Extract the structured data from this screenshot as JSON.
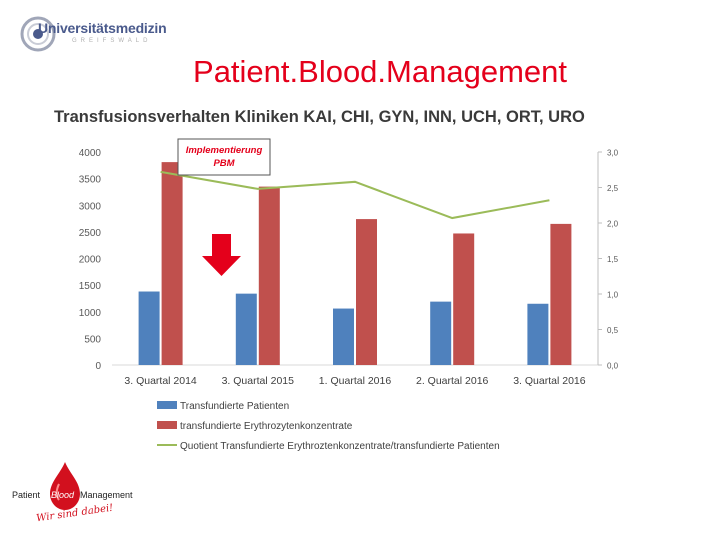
{
  "header": {
    "logo_text": "Universitätsmedizin",
    "logo_subtext": "GREIFSWALD",
    "title": "Patient.Blood.Management",
    "subtitle": "Transfusionsverhalten Kliniken KAI, CHI, GYN, INN, UCH, ORT, URO"
  },
  "annotation": {
    "line1": "Implementierung",
    "line2": "PBM"
  },
  "footer_logo": {
    "left": "Patient",
    "center": "Blood",
    "right": "Management",
    "slogan": "Wir sind dabei!"
  },
  "colors": {
    "blue": "#4f81bd",
    "red": "#c0504d",
    "green": "#9bbb59",
    "title_red": "#e4001b"
  },
  "chart_data": {
    "type": "bar",
    "categories": [
      "3. Quartal 2014",
      "3. Quartal 2015",
      "1. Quartal 2016",
      "2. Quartal 2016",
      "3. Quartal 2016"
    ],
    "series": [
      {
        "name": "Transfundierte Patienten",
        "type": "bar",
        "axis": "left",
        "color": "#4f81bd",
        "values": [
          1380,
          1340,
          1060,
          1190,
          1150
        ]
      },
      {
        "name": "transfundierte Erythrozytenkonzentrate",
        "type": "bar",
        "axis": "left",
        "color": "#c0504d",
        "values": [
          3810,
          3350,
          2740,
          2470,
          2650
        ]
      },
      {
        "name": "Quotient Transfundierte Erythroztenkonzentrate/transfundierte Patienten",
        "type": "line",
        "axis": "right",
        "color": "#9bbb59",
        "values": [
          2.72,
          2.48,
          2.58,
          2.07,
          2.32
        ]
      }
    ],
    "yaxis_left": {
      "ylim": [
        0,
        4000
      ],
      "ticks": [
        "0",
        "500",
        "1000",
        "1500",
        "2000",
        "2500",
        "3000",
        "3500",
        "4000"
      ]
    },
    "yaxis_right": {
      "ylim": [
        0,
        3.0
      ],
      "ticks": [
        "0,0",
        "0,5",
        "1,0",
        "1,5",
        "2,0",
        "2,5",
        "3,0"
      ]
    },
    "grid": false,
    "legend": "bottom"
  }
}
